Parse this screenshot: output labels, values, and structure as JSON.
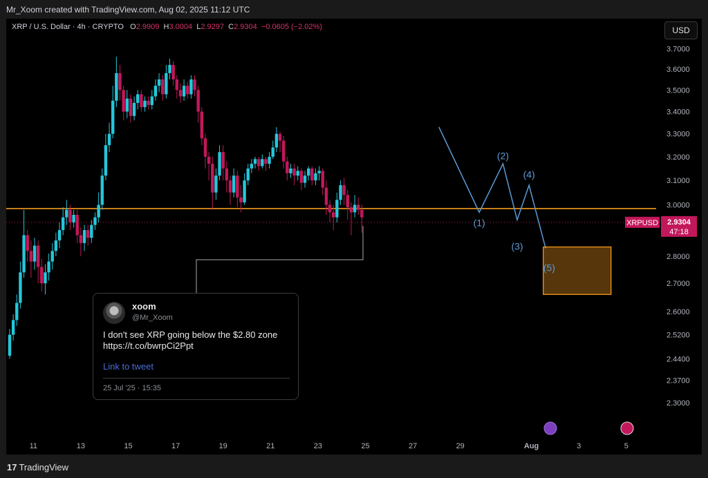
{
  "header": {
    "attribution": "Mr_Xoom created with TradingView.com, Aug 02, 2025 11:12 UTC"
  },
  "legend": {
    "symbol": "XRP / U.S. Dollar · 4h · CRYPTO",
    "o_label": "O",
    "o_value": "2.9909",
    "h_label": "H",
    "h_value": "3.0004",
    "l_label": "L",
    "l_value": "2.9297",
    "c_label": "C",
    "c_value": "2.9304",
    "change": "−0.0605 (−2.02%)"
  },
  "currency_button": "USD",
  "chart_data": {
    "type": "candlestick",
    "symbol": "XRPUSD",
    "interval": "4h",
    "y_axis": {
      "ticks": [
        "3.7000",
        "3.6000",
        "3.5000",
        "3.4000",
        "3.3000",
        "3.2000",
        "3.1000",
        "3.0000",
        "2.9000",
        "2.8000",
        "2.7000",
        "2.6000",
        "2.5200",
        "2.4400",
        "2.3700",
        "2.3000"
      ],
      "scale": "log",
      "range": [
        2.26,
        3.76
      ]
    },
    "x_axis": {
      "ticks": [
        "11",
        "13",
        "15",
        "17",
        "19",
        "21",
        "23",
        "25",
        "27",
        "29",
        "Aug",
        "3",
        "5"
      ]
    },
    "last_price": {
      "label": "XRPUSD",
      "price": "2.9304",
      "countdown": "47:18"
    },
    "support_level": 2.985,
    "wave_labels": [
      "(1)",
      "(2)",
      "(3)",
      "(4)",
      "(5)"
    ],
    "target_zone": {
      "top": 2.835,
      "bottom": 2.66,
      "color": "#f59b1c"
    },
    "colors": {
      "up": "#26c6da",
      "down": "#c2185b",
      "support": "#f59b1c",
      "wave": "#5b9bd5"
    },
    "candles": [
      [
        10.0,
        2.45,
        2.52,
        2.44,
        2.54
      ],
      [
        10.15,
        2.52,
        2.57,
        2.5,
        2.59
      ],
      [
        10.3,
        2.57,
        2.63,
        2.55,
        2.66
      ],
      [
        10.45,
        2.63,
        2.74,
        2.61,
        2.78
      ],
      [
        10.6,
        2.74,
        2.88,
        2.72,
        2.98
      ],
      [
        10.75,
        2.88,
        2.82,
        2.78,
        2.9
      ],
      [
        10.9,
        2.82,
        2.78,
        2.72,
        2.86
      ],
      [
        11.05,
        2.78,
        2.84,
        2.75,
        2.87
      ],
      [
        11.2,
        2.84,
        2.76,
        2.7,
        2.86
      ],
      [
        11.35,
        2.76,
        2.7,
        2.67,
        2.79
      ],
      [
        11.5,
        2.7,
        2.74,
        2.66,
        2.77
      ],
      [
        11.65,
        2.74,
        2.78,
        2.71,
        2.81
      ],
      [
        11.8,
        2.78,
        2.82,
        2.75,
        2.85
      ],
      [
        11.95,
        2.82,
        2.86,
        2.8,
        2.89
      ],
      [
        12.1,
        2.86,
        2.9,
        2.83,
        2.93
      ],
      [
        12.25,
        2.9,
        2.95,
        2.88,
        2.99
      ],
      [
        12.4,
        2.95,
        2.98,
        2.92,
        3.02
      ],
      [
        12.55,
        2.98,
        2.93,
        2.9,
        3.0
      ],
      [
        12.7,
        2.93,
        2.96,
        2.91,
        2.98
      ],
      [
        12.85,
        2.96,
        2.88,
        2.85,
        2.98
      ],
      [
        13.0,
        2.88,
        2.85,
        2.8,
        2.91
      ],
      [
        13.15,
        2.85,
        2.9,
        2.82,
        2.92
      ],
      [
        13.3,
        2.9,
        2.87,
        2.84,
        2.92
      ],
      [
        13.45,
        2.87,
        2.92,
        2.85,
        2.94
      ],
      [
        13.6,
        2.92,
        2.95,
        2.9,
        2.97
      ],
      [
        13.75,
        2.95,
        3.0,
        2.93,
        3.05
      ],
      [
        13.9,
        3.0,
        3.12,
        2.98,
        3.15
      ],
      [
        14.05,
        3.12,
        3.25,
        3.1,
        3.3
      ],
      [
        14.2,
        3.25,
        3.3,
        3.22,
        3.35
      ],
      [
        14.35,
        3.3,
        3.45,
        3.28,
        3.52
      ],
      [
        14.5,
        3.45,
        3.58,
        3.42,
        3.66
      ],
      [
        14.65,
        3.58,
        3.5,
        3.45,
        3.62
      ],
      [
        14.8,
        3.5,
        3.4,
        3.36,
        3.52
      ],
      [
        14.95,
        3.4,
        3.46,
        3.37,
        3.5
      ],
      [
        15.1,
        3.46,
        3.38,
        3.35,
        3.48
      ],
      [
        15.25,
        3.38,
        3.44,
        3.36,
        3.47
      ],
      [
        15.4,
        3.44,
        3.48,
        3.41,
        3.5
      ],
      [
        15.55,
        3.48,
        3.42,
        3.4,
        3.5
      ],
      [
        15.7,
        3.42,
        3.45,
        3.4,
        3.47
      ],
      [
        15.85,
        3.45,
        3.43,
        3.41,
        3.47
      ],
      [
        16.0,
        3.43,
        3.47,
        3.41,
        3.5
      ],
      [
        16.15,
        3.47,
        3.52,
        3.45,
        3.55
      ],
      [
        16.3,
        3.52,
        3.55,
        3.49,
        3.58
      ],
      [
        16.45,
        3.55,
        3.48,
        3.45,
        3.57
      ],
      [
        16.6,
        3.48,
        3.58,
        3.46,
        3.62
      ],
      [
        16.75,
        3.58,
        3.62,
        3.55,
        3.65
      ],
      [
        16.9,
        3.62,
        3.55,
        3.52,
        3.64
      ],
      [
        17.05,
        3.55,
        3.5,
        3.46,
        3.57
      ],
      [
        17.2,
        3.5,
        3.47,
        3.44,
        3.53
      ],
      [
        17.35,
        3.47,
        3.52,
        3.45,
        3.55
      ],
      [
        17.5,
        3.52,
        3.48,
        3.46,
        3.54
      ],
      [
        17.65,
        3.48,
        3.55,
        3.46,
        3.57
      ],
      [
        17.8,
        3.55,
        3.5,
        3.47,
        3.57
      ],
      [
        17.95,
        3.5,
        3.4,
        3.35,
        3.52
      ],
      [
        18.1,
        3.4,
        3.28,
        3.25,
        3.42
      ],
      [
        18.25,
        3.28,
        3.2,
        3.15,
        3.3
      ],
      [
        18.4,
        3.2,
        3.17,
        3.1,
        3.22
      ],
      [
        18.55,
        3.17,
        3.05,
        2.98,
        3.2
      ],
      [
        18.7,
        3.05,
        3.12,
        3.02,
        3.15
      ],
      [
        18.85,
        3.12,
        3.22,
        3.1,
        3.25
      ],
      [
        19.0,
        3.22,
        3.15,
        3.1,
        3.25
      ],
      [
        19.15,
        3.15,
        3.1,
        3.05,
        3.18
      ],
      [
        19.3,
        3.1,
        3.05,
        3.0,
        3.12
      ],
      [
        19.45,
        3.05,
        3.12,
        3.03,
        3.15
      ],
      [
        19.6,
        3.12,
        3.03,
        2.99,
        3.14
      ],
      [
        19.75,
        3.03,
        3.01,
        2.97,
        3.08
      ],
      [
        19.9,
        3.01,
        3.1,
        3.0,
        3.13
      ],
      [
        20.05,
        3.1,
        3.15,
        3.08,
        3.17
      ],
      [
        20.2,
        3.15,
        3.17,
        3.13,
        3.19
      ],
      [
        20.35,
        3.17,
        3.19,
        3.15,
        3.2
      ],
      [
        20.5,
        3.19,
        3.16,
        3.14,
        3.2
      ],
      [
        20.65,
        3.16,
        3.19,
        3.15,
        3.21
      ],
      [
        20.8,
        3.19,
        3.17,
        3.14,
        3.2
      ],
      [
        20.95,
        3.17,
        3.2,
        3.15,
        3.22
      ],
      [
        21.1,
        3.2,
        3.24,
        3.19,
        3.27
      ],
      [
        21.25,
        3.24,
        3.3,
        3.22,
        3.33
      ],
      [
        21.4,
        3.3,
        3.27,
        3.22,
        3.31
      ],
      [
        21.55,
        3.27,
        3.18,
        3.15,
        3.29
      ],
      [
        21.7,
        3.18,
        3.13,
        3.1,
        3.2
      ],
      [
        21.85,
        3.13,
        3.15,
        3.11,
        3.17
      ],
      [
        22.0,
        3.15,
        3.12,
        3.08,
        3.17
      ],
      [
        22.15,
        3.12,
        3.14,
        3.1,
        3.16
      ],
      [
        22.3,
        3.14,
        3.09,
        3.06,
        3.15
      ],
      [
        22.45,
        3.09,
        3.12,
        3.07,
        3.14
      ],
      [
        22.6,
        3.12,
        3.15,
        3.1,
        3.16
      ],
      [
        22.75,
        3.15,
        3.1,
        3.08,
        3.16
      ],
      [
        22.9,
        3.1,
        3.13,
        3.08,
        3.15
      ],
      [
        23.05,
        3.13,
        3.14,
        3.1,
        3.16
      ],
      [
        23.2,
        3.14,
        3.07,
        3.04,
        3.15
      ],
      [
        23.35,
        3.07,
        3.0,
        2.96,
        3.1
      ],
      [
        23.5,
        3.0,
        2.97,
        2.93,
        3.02
      ],
      [
        23.65,
        2.97,
        2.95,
        2.9,
        3.0
      ],
      [
        23.8,
        2.95,
        3.02,
        2.93,
        3.05
      ],
      [
        23.95,
        3.02,
        3.08,
        3.0,
        3.1
      ],
      [
        24.1,
        3.08,
        3.04,
        3.0,
        3.11
      ],
      [
        24.25,
        3.04,
        2.99,
        2.94,
        3.06
      ],
      [
        24.4,
        2.99,
        2.97,
        2.88,
        3.01
      ],
      [
        24.55,
        2.97,
        3.0,
        2.95,
        3.04
      ],
      [
        24.7,
        3.0,
        2.98,
        2.96,
        3.03
      ],
      [
        24.85,
        2.98,
        2.95,
        2.89,
        3.0
      ]
    ]
  },
  "tweet": {
    "name": "xoom",
    "handle": "@Mr_Xoom",
    "text_line1": "I don't see XRP going below the $2.80 zone",
    "text_line2": "https://t.co/bwrpCi2Ppt",
    "link_label": "Link to tweet",
    "date": "25 Jul '25 · 15:35"
  },
  "footer": {
    "logo_mark": "17",
    "logo_text": "TradingView"
  }
}
